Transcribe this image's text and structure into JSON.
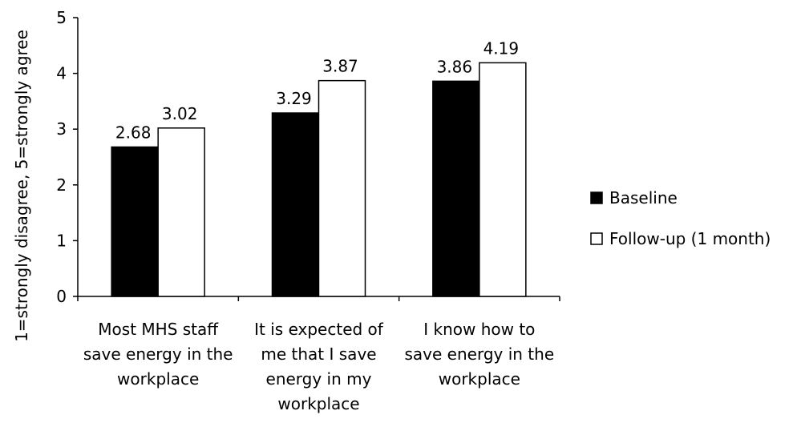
{
  "chart_data": {
    "type": "bar",
    "categories": [
      [
        "Most MHS staff",
        "save energy in the",
        "workplace"
      ],
      [
        "It is expected of",
        "me that I save",
        "energy in my",
        "workplace"
      ],
      [
        "I know how to",
        "save energy in the",
        "workplace"
      ]
    ],
    "series": [
      {
        "name": "Baseline",
        "values": [
          2.68,
          3.29,
          3.86
        ],
        "color": "#000000"
      },
      {
        "name": "Follow-up (1 month)",
        "values": [
          3.02,
          3.87,
          4.19
        ],
        "color": "#ffffff"
      }
    ],
    "value_labels": [
      [
        "2.68",
        "3.29",
        "3.86"
      ],
      [
        "3.02",
        "3.87",
        "4.19"
      ]
    ],
    "ylabel": "1=strongly disagree, 5=strongly agree",
    "ylim": [
      0,
      5
    ],
    "yticks": [
      "0",
      "1",
      "2",
      "3",
      "4",
      "5"
    ],
    "grid": false,
    "legend_position": "right"
  }
}
